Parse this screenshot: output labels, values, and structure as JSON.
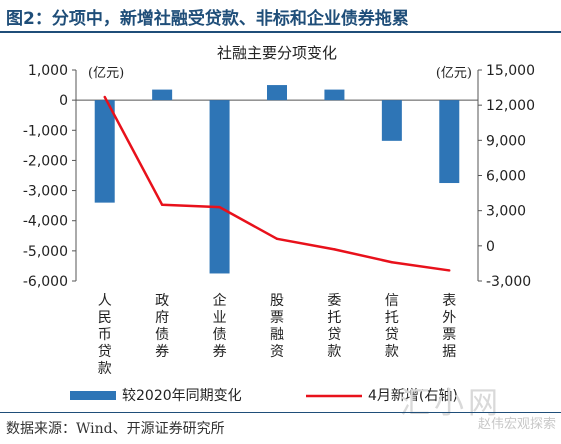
{
  "header": {
    "figure_title": "图2：分项中，新增社融受贷款、非标和企业债券拖累"
  },
  "footer": {
    "source": "数据来源：Wind、开源证券研究所"
  },
  "watermark": {
    "main": "汇小网",
    "sub": "赵伟宏观探索"
  },
  "chart_data": {
    "type": "bar",
    "title": "社融主要分项变化",
    "categories": [
      "人民币贷款",
      "政府债券",
      "企业债券",
      "股票融资",
      "委托贷款",
      "信托贷款",
      "表外票据"
    ],
    "left_axis": {
      "unit": "(亿元)",
      "ylim": [
        -6000,
        1000
      ],
      "ticks": [
        "1,000",
        "0",
        "-1,000",
        "-2,000",
        "-3,000",
        "-4,000",
        "-5,000",
        "-6,000"
      ],
      "tick_values": [
        1000,
        0,
        -1000,
        -2000,
        -3000,
        -4000,
        -5000,
        -6000
      ]
    },
    "right_axis": {
      "unit": "(亿元)",
      "ylim": [
        -3000,
        15000
      ],
      "ticks": [
        "15,000",
        "12,000",
        "9,000",
        "6,000",
        "3,000",
        "0",
        "-3,000"
      ],
      "tick_values": [
        15000,
        12000,
        9000,
        6000,
        3000,
        0,
        -3000
      ]
    },
    "series": [
      {
        "name": "较2020年同期变化",
        "type": "bar",
        "axis": "left",
        "color": "#2e75b6",
        "values": [
          -3400,
          350,
          -5750,
          500,
          350,
          -1350,
          -2750
        ]
      },
      {
        "name": "4月新增(右轴)",
        "type": "line",
        "axis": "right",
        "color": "#e8111b",
        "values": [
          12700,
          3500,
          3300,
          600,
          -300,
          -1400,
          -2100
        ]
      }
    ],
    "legend": "bottom",
    "grid": false
  }
}
